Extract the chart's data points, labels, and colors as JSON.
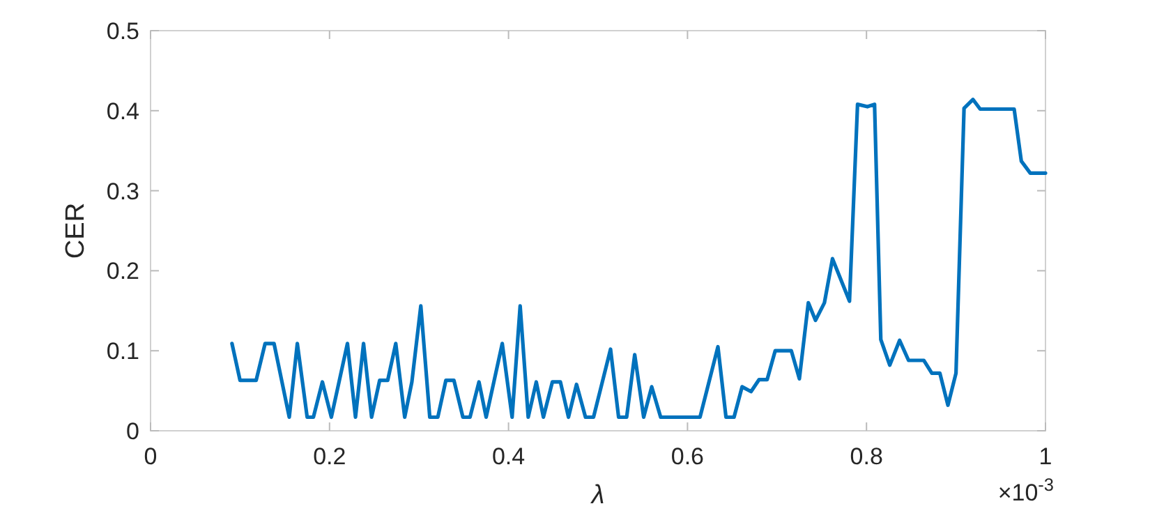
{
  "chart_data": {
    "type": "line",
    "xlabel": "λ",
    "ylabel": "CER",
    "annotations": [
      "×10$^{-3}$"
    ],
    "x": [
      0.091,
      0.1,
      0.118,
      0.128,
      0.138,
      0.155,
      0.164,
      0.175,
      0.182,
      0.192,
      0.202,
      0.22,
      0.229,
      0.238,
      0.247,
      0.256,
      0.265,
      0.274,
      0.284,
      0.292,
      0.302,
      0.312,
      0.321,
      0.33,
      0.339,
      0.349,
      0.357,
      0.367,
      0.375,
      0.393,
      0.404,
      0.413,
      0.422,
      0.431,
      0.439,
      0.449,
      0.458,
      0.467,
      0.476,
      0.486,
      0.495,
      0.514,
      0.523,
      0.532,
      0.541,
      0.551,
      0.56,
      0.57,
      0.614,
      0.634,
      0.643,
      0.652,
      0.661,
      0.671,
      0.68,
      0.689,
      0.698,
      0.716,
      0.725,
      0.735,
      0.743,
      0.753,
      0.762,
      0.781,
      0.79,
      0.801,
      0.809,
      0.816,
      0.826,
      0.837,
      0.847,
      0.864,
      0.873,
      0.882,
      0.891,
      0.9,
      0.909,
      0.919,
      0.927,
      0.965,
      0.973,
      0.983,
      1.0
    ],
    "series": [
      {
        "color": "#0072bd",
        "values": [
          0.109,
          0.063,
          0.063,
          0.109,
          0.109,
          0.017,
          0.109,
          0.017,
          0.017,
          0.061,
          0.017,
          0.109,
          0.017,
          0.109,
          0.017,
          0.063,
          0.063,
          0.109,
          0.017,
          0.061,
          0.156,
          0.017,
          0.017,
          0.063,
          0.063,
          0.017,
          0.017,
          0.061,
          0.017,
          0.109,
          0.017,
          0.156,
          0.017,
          0.061,
          0.017,
          0.061,
          0.061,
          0.017,
          0.058,
          0.017,
          0.017,
          0.102,
          0.017,
          0.017,
          0.095,
          0.017,
          0.055,
          0.017,
          0.017,
          0.105,
          0.017,
          0.017,
          0.055,
          0.049,
          0.064,
          0.064,
          0.1,
          0.1,
          0.065,
          0.16,
          0.138,
          0.16,
          0.215,
          0.162,
          0.408,
          0.405,
          0.408,
          0.114,
          0.082,
          0.113,
          0.088,
          0.088,
          0.072,
          0.072,
          0.032,
          0.072,
          0.403,
          0.414,
          0.402,
          0.402,
          0.337,
          0.322,
          0.322
        ]
      }
    ],
    "xlim": [
      0,
      1
    ],
    "xticks": [
      0,
      0.2,
      0.4,
      0.6,
      0.8,
      1
    ],
    "ylim": [
      0,
      0.5
    ],
    "yticks": [
      0,
      0.1,
      0.2,
      0.3,
      0.4,
      0.5
    ],
    "grid": false,
    "line_style": "solid",
    "marker": "none"
  }
}
